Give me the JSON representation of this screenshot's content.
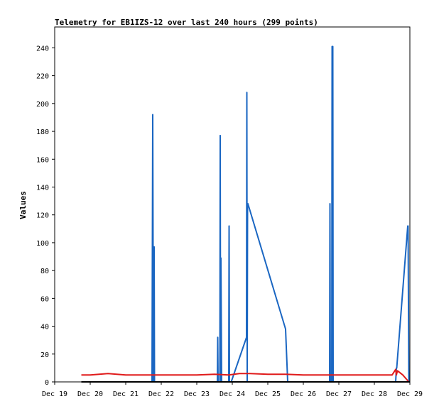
{
  "chart_data": {
    "type": "line",
    "title": "Telemetry for EB1IZS-12 over last 240 hours (299 points)",
    "xlabel": "",
    "ylabel": "Values",
    "x_ticks": [
      "Dec 19",
      "Dec 20",
      "Dec 21",
      "Dec 22",
      "Dec 23",
      "Dec 24",
      "Dec 25",
      "Dec 26",
      "Dec 27",
      "Dec 28",
      "Dec 29"
    ],
    "xlim": [
      0,
      10
    ],
    "ylim": [
      0,
      255
    ],
    "y_ticks": [
      0,
      20,
      40,
      60,
      80,
      100,
      120,
      140,
      160,
      180,
      200,
      220,
      240
    ],
    "grid": false,
    "legend": "none",
    "series": [
      {
        "color": "#1a66c2",
        "x": [
          2.74,
          2.76,
          2.78,
          2.8,
          2.81,
          2.82,
          2.9,
          4.58,
          4.59,
          4.6,
          4.65,
          4.66,
          4.67,
          4.68,
          4.7,
          4.9,
          4.91,
          4.92,
          4.97,
          5.4,
          5.41,
          5.42,
          5.43,
          5.44,
          6.5,
          6.56,
          6.6,
          7.74,
          7.75,
          7.76,
          7.8,
          7.81,
          7.82,
          7.83,
          7.84,
          9.6,
          9.62,
          9.63,
          9.94,
          9.95,
          9.97
        ],
        "y": [
          0,
          192,
          0,
          97,
          0,
          0,
          0,
          0,
          32,
          0,
          0,
          177,
          0,
          89,
          0,
          0,
          112,
          0,
          0,
          32,
          208,
          0,
          128,
          128,
          38,
          0,
          0,
          0,
          128,
          0,
          0,
          241,
          0,
          241,
          0,
          0,
          10,
          10,
          112,
          112,
          0
        ]
      },
      {
        "color": "#e01a1a",
        "x": [
          0.75,
          1.0,
          1.25,
          1.5,
          1.75,
          2.0,
          2.5,
          3.0,
          3.5,
          4.0,
          4.5,
          4.9,
          5.2,
          5.5,
          6.0,
          6.5,
          7.0,
          7.5,
          8.0,
          8.5,
          9.0,
          9.5,
          9.6,
          9.62,
          9.65,
          9.8,
          9.97
        ],
        "y": [
          5,
          5,
          5.5,
          6,
          5.5,
          5,
          5,
          5,
          5,
          5,
          5.5,
          5,
          6,
          6,
          5.5,
          5.5,
          5,
          5,
          5,
          5,
          5,
          5,
          9,
          5,
          8,
          5,
          0
        ]
      },
      {
        "color": "#000000",
        "x": [
          0.75,
          10.0
        ],
        "y": [
          0,
          0
        ]
      }
    ]
  }
}
